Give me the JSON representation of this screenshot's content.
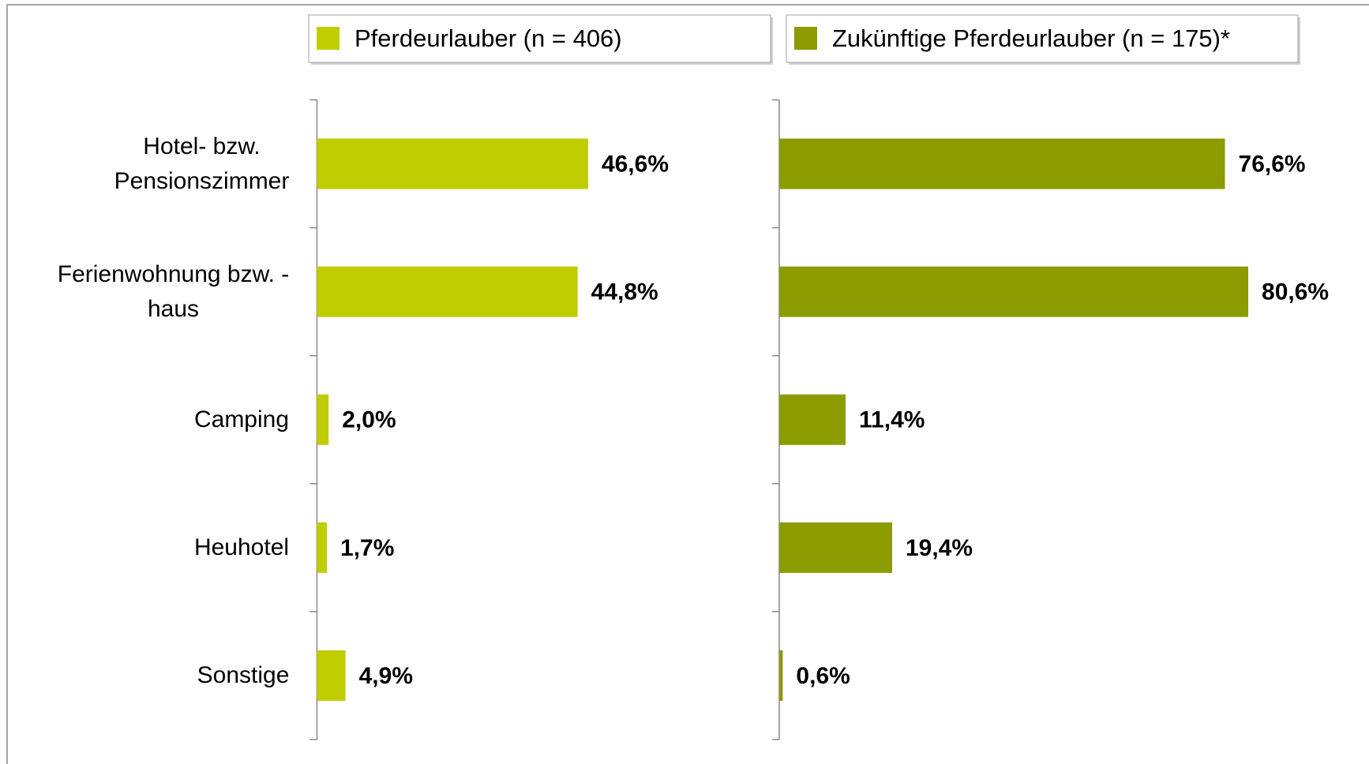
{
  "chart_data": {
    "type": "bar",
    "orientation": "horizontal",
    "categories": [
      "Hotel- bzw. Pensionszimmer",
      "Ferienwohnung bzw. - haus",
      "Camping",
      "Heuhotel",
      "Sonstige"
    ],
    "series": [
      {
        "name": "Pferdeurlauber (n = 406)",
        "color": "#bfcd00",
        "values": [
          46.6,
          44.8,
          2.0,
          1.7,
          4.9
        ],
        "value_labels": [
          "46,6%",
          "44,8%",
          "2,0%",
          "1,7%",
          "4,9%"
        ]
      },
      {
        "name": "Zukünftige Pferdeurlauber (n = 175)*",
        "color": "#8c9b00",
        "values": [
          76.6,
          80.6,
          11.4,
          19.4,
          0.6
        ],
        "value_labels": [
          "76,6%",
          "80,6%",
          "11,4%",
          "19,4%",
          "0,6%"
        ]
      }
    ],
    "grid": false
  }
}
